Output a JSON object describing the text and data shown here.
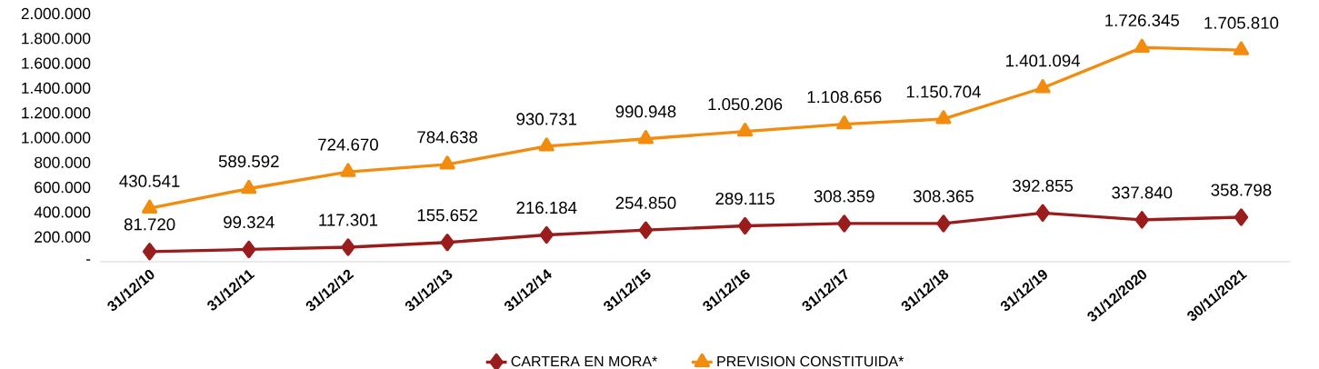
{
  "chart_data": {
    "type": "line",
    "categories": [
      "31/12/10",
      "31/12/11",
      "31/12/12",
      "31/12/13",
      "31/12/14",
      "31/12/15",
      "31/12/16",
      "31/12/17",
      "31/12/18",
      "31/12/19",
      "31/12/2020",
      "30/11/2021"
    ],
    "series": [
      {
        "name": "CARTERA EN MORA*",
        "color": "#9b1c1c",
        "marker": "diamond",
        "values": [
          81720,
          99324,
          117301,
          155652,
          216184,
          254850,
          289115,
          308359,
          308365,
          392855,
          337840,
          358798
        ],
        "value_labels": [
          "81.720",
          "99.324",
          "117.301",
          "155.652",
          "216.184",
          "254.850",
          "289.115",
          "308.359",
          "308.365",
          "392.855",
          "337.840",
          "358.798"
        ]
      },
      {
        "name": "PREVISION CONSTITUIDA*",
        "color": "#f28c0f",
        "marker": "triangle",
        "values": [
          430541,
          589592,
          724670,
          784638,
          930731,
          990948,
          1050206,
          1108656,
          1150704,
          1401094,
          1726345,
          1705810
        ],
        "value_labels": [
          "430.541",
          "589.592",
          "724.670",
          "784.638",
          "930.731",
          "990.948",
          "1.050.206",
          "1.108.656",
          "1.150.704",
          "1.401.094",
          "1.726.345",
          "1.705.810"
        ]
      }
    ],
    "ylim": [
      0,
      2000000
    ],
    "yticks": [
      {
        "value": 0,
        "label": "-"
      },
      {
        "value": 200000,
        "label": "200.000"
      },
      {
        "value": 400000,
        "label": "400.000"
      },
      {
        "value": 600000,
        "label": "600.000"
      },
      {
        "value": 800000,
        "label": "800.000"
      },
      {
        "value": 1000000,
        "label": "1.000.000"
      },
      {
        "value": 1200000,
        "label": "1.200.000"
      },
      {
        "value": 1400000,
        "label": "1.400.000"
      },
      {
        "value": 1600000,
        "label": "1.600.000"
      },
      {
        "value": 1800000,
        "label": "1.800.000"
      },
      {
        "value": 2000000,
        "label": "2.000.000"
      }
    ],
    "legend": "bottom",
    "line_style": "solid"
  }
}
